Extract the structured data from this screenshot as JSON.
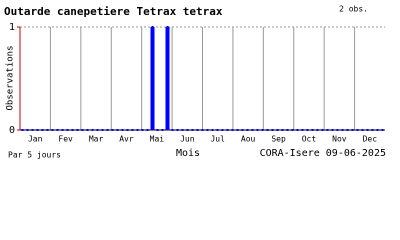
{
  "chart_data": {
    "type": "bar",
    "title": "Outarde canepetiere  Tetrax tetrax",
    "subtitle": "2 obs.",
    "y_label": "Observations",
    "x_label": "Mois",
    "footnote": "Par 5 jours",
    "source": "CORA-Isere 09-06-2025",
    "months": [
      "Jan",
      "Fev",
      "Mar",
      "Avr",
      "Mai",
      "Jun",
      "Jul",
      "Aou",
      "Sep",
      "Oct",
      "Nov",
      "Dec"
    ],
    "values": [
      0,
      0,
      0,
      0,
      0,
      0,
      0,
      0,
      0,
      0,
      0,
      0,
      0,
      0,
      0,
      0,
      0,
      0,
      0,
      0,
      0,
      0,
      0,
      0,
      0,
      0,
      1,
      0,
      0,
      1,
      0,
      0,
      0,
      0,
      0,
      0,
      0,
      0,
      0,
      0,
      0,
      0,
      0,
      0,
      0,
      0,
      0,
      0,
      0,
      0,
      0,
      0,
      0,
      0,
      0,
      0,
      0,
      0,
      0,
      0,
      0,
      0,
      0,
      0,
      0,
      0,
      0,
      0,
      0,
      0,
      0,
      0,
      0
    ],
    "color": "#0000ff",
    "ylim": [
      0,
      1
    ],
    "yticks": [
      0,
      1
    ],
    "grid": true
  }
}
